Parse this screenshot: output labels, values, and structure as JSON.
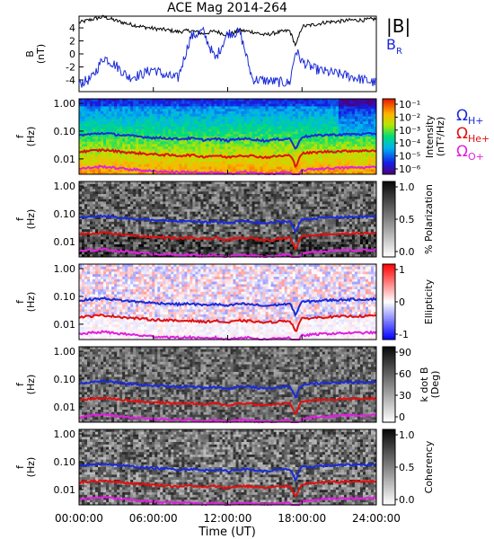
{
  "title": "ACE Mag 2014-264",
  "xlabel": "Time (UT)",
  "time_ticks": [
    "00:00:00",
    "06:00:00",
    "12:00:00",
    "18:00:00",
    "24:00:00"
  ],
  "ion_labels": {
    "h": "H+",
    "he": "He+",
    "o": "O+",
    "omega": "Ω"
  },
  "colors": {
    "b_total": "#000000",
    "b_r": "#1a2bd8",
    "h_plus": "#1a2bd8",
    "he_plus": "#e01010",
    "o_plus": "#e020e0"
  },
  "chart_data": [
    {
      "type": "line",
      "panel": "field",
      "ylabel": "B",
      "yunit": "(nT)",
      "ylim": [
        -5.8,
        5.8
      ],
      "yticks": [
        "4",
        "2",
        "0",
        "-2",
        "-4"
      ],
      "ytick_values": [
        4,
        2,
        0,
        -2,
        -4
      ],
      "x_hours": [
        0,
        1,
        2,
        3,
        4,
        5,
        6,
        7,
        8,
        9,
        10,
        11,
        12,
        13,
        14,
        15,
        16,
        17,
        17.5,
        18,
        19,
        20,
        21,
        22,
        23,
        24
      ],
      "series": [
        {
          "name": "|B|",
          "values": [
            4.8,
            5.3,
            5.7,
            5.1,
            4.6,
            4.2,
            3.9,
            3.7,
            3.4,
            3.6,
            3.1,
            3.5,
            2.9,
            3.6,
            3.4,
            2.9,
            3.3,
            3.6,
            1.2,
            4.2,
            4.5,
            4.9,
            5.0,
            5.2,
            5.2,
            5.4
          ]
        },
        {
          "name": "B_R",
          "values": [
            -4.6,
            -3.8,
            -0.5,
            -1.8,
            -3.6,
            -3.2,
            -2.3,
            -3.4,
            -3.7,
            2.6,
            3.5,
            -0.8,
            3.2,
            3.3,
            -3.9,
            -4.1,
            -4.3,
            -4.5,
            0.6,
            -1.2,
            -2.3,
            -2.8,
            -3.1,
            -3.5,
            -4.0,
            -4.5
          ]
        }
      ]
    },
    {
      "type": "heatmap",
      "panel": "intensity",
      "ylabel": "f",
      "yunit": "(Hz)",
      "yticks": [
        "1.00",
        "0.10",
        "0.01"
      ],
      "colorbar": {
        "label": "Intensity",
        "unit": "(nT²/Hz)",
        "ticks": [
          "10⁻¹",
          "10⁻²",
          "10⁻³",
          "10⁻⁴",
          "10⁻⁵",
          "10⁻⁶"
        ]
      }
    },
    {
      "type": "heatmap",
      "panel": "polarization",
      "ylabel": "f",
      "yunit": "(Hz)",
      "yticks": [
        "1.00",
        "0.10",
        "0.01"
      ],
      "colorbar": {
        "label": "% Polarization",
        "ticks": [
          "1.0",
          "0.5",
          "0.0"
        ]
      }
    },
    {
      "type": "heatmap",
      "panel": "ellipticity",
      "ylabel": "f",
      "yunit": "(Hz)",
      "yticks": [
        "1.00",
        "0.10",
        "0.01"
      ],
      "colorbar": {
        "label": "Ellipticity",
        "ticks": [
          "1",
          "0",
          "-1"
        ]
      }
    },
    {
      "type": "heatmap",
      "panel": "k_dot_b",
      "ylabel": "f",
      "yunit": "(Hz)",
      "yticks": [
        "1.00",
        "0.10",
        "0.01"
      ],
      "colorbar": {
        "label": "k dot B",
        "unit": "(Deg)",
        "ticks": [
          "90",
          "60",
          "30",
          "0"
        ]
      }
    },
    {
      "type": "heatmap",
      "panel": "coherency",
      "ylabel": "f",
      "yunit": "(Hz)",
      "yticks": [
        "1.00",
        "0.10",
        "0.01"
      ],
      "colorbar": {
        "label": "Coherency",
        "ticks": [
          "1.0",
          "0.5",
          "0.0"
        ]
      }
    },
    {
      "type": "line",
      "panel": "gyrofrequencies",
      "note_units": "Hz",
      "x_hours": [
        0,
        1,
        2,
        3,
        4,
        5,
        6,
        7,
        8,
        9,
        10,
        11,
        12,
        13,
        14,
        15,
        16,
        17,
        17.5,
        18,
        19,
        20,
        21,
        22,
        23,
        24
      ],
      "series": [
        {
          "name": "H+",
          "values": [
            0.071,
            0.078,
            0.085,
            0.075,
            0.068,
            0.063,
            0.058,
            0.056,
            0.052,
            0.055,
            0.048,
            0.053,
            0.045,
            0.054,
            0.051,
            0.045,
            0.05,
            0.054,
            0.019,
            0.063,
            0.068,
            0.073,
            0.075,
            0.078,
            0.078,
            0.081
          ]
        },
        {
          "name": "He+",
          "values": [
            0.018,
            0.0195,
            0.021,
            0.019,
            0.017,
            0.0158,
            0.0145,
            0.014,
            0.013,
            0.0138,
            0.012,
            0.0133,
            0.0113,
            0.0135,
            0.0128,
            0.0113,
            0.0125,
            0.0135,
            0.0048,
            0.0158,
            0.017,
            0.0183,
            0.0188,
            0.0195,
            0.0195,
            0.0203
          ]
        },
        {
          "name": "O+",
          "values": [
            0.0044,
            0.0049,
            0.0053,
            0.0047,
            0.0043,
            0.0039,
            0.0036,
            0.0035,
            0.0033,
            0.0034,
            0.003,
            0.0033,
            0.0028,
            0.0034,
            0.0032,
            0.0028,
            0.0031,
            0.0034,
            0.0012,
            0.0039,
            0.0043,
            0.0046,
            0.0047,
            0.0049,
            0.0049,
            0.0051
          ]
        }
      ]
    }
  ]
}
